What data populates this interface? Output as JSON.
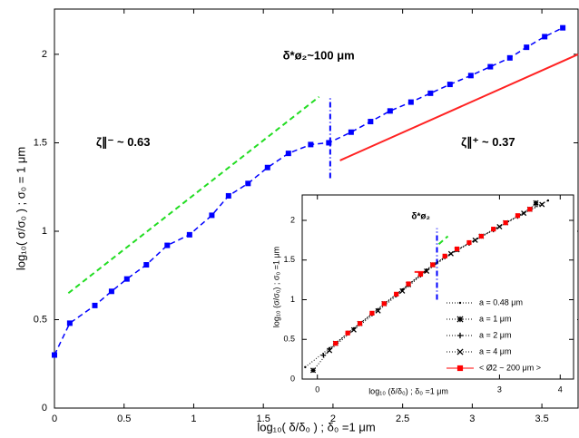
{
  "chart_data": [
    {
      "type": "scatter",
      "xlabel": "log₁₀( δ/δ₀ ) ; δ₀ =1 μm",
      "ylabel": "log₁₀( σ/σ₀ ) ; σ₀ = 1 μm",
      "xlim": [
        0,
        3.76
      ],
      "xticks": [
        0,
        0.5,
        1,
        1.5,
        2,
        2.5,
        3,
        3.5
      ],
      "ylim": [
        0,
        2.256
      ],
      "yticks": [
        0,
        0.5,
        1,
        1.5,
        2
      ],
      "series": [
        {
          "color": "#0000ff",
          "marker": "square",
          "line": "dashed",
          "x": [
            0,
            0.11,
            0.29,
            0.41,
            0.52,
            0.66,
            0.81,
            0.97,
            1.13,
            1.25,
            1.39,
            1.53,
            1.68,
            1.84,
            1.97,
            2.13,
            2.27,
            2.41,
            2.56,
            2.7,
            2.84,
            2.99,
            3.13,
            3.27,
            3.39,
            3.52,
            3.65
          ],
          "values": [
            0.3,
            0.48,
            0.58,
            0.66,
            0.73,
            0.81,
            0.92,
            0.98,
            1.09,
            1.2,
            1.27,
            1.36,
            1.44,
            1.49,
            1.5,
            1.56,
            1.62,
            1.68,
            1.73,
            1.78,
            1.83,
            1.88,
            1.93,
            1.98,
            2.04,
            2.1,
            2.15
          ]
        }
      ],
      "lines": [
        {
          "color": "#22dd22",
          "style": "dashed",
          "x": [
            0.1,
            1.9
          ],
          "values": [
            0.65,
            1.76
          ]
        },
        {
          "color": "#ff2222",
          "style": "solid",
          "x": [
            2.05,
            3.76
          ],
          "values": [
            1.4,
            2.0
          ]
        },
        {
          "color": "#0000ff",
          "style": "dashdot",
          "x": [
            1.98,
            1.98
          ],
          "values": [
            1.3,
            1.76
          ]
        }
      ],
      "annotations": [
        {
          "text": "δ*ø₂~100 μm",
          "x": 1.64,
          "y": 1.99,
          "color": "#0000ff"
        },
        {
          "text": "ζ∥⁻ ~ 0.63",
          "x": 0.3,
          "y": 1.5,
          "color": "#33dd33"
        },
        {
          "text": "ζ∥⁺ ~ 0.37",
          "x": 2.92,
          "y": 1.5,
          "color": "#ff2222"
        }
      ]
    },
    {
      "type": "scatter",
      "xlabel": "log₁₀ (δ/δ₀) ; δ₀ =1 μm",
      "ylabel": "log₁₀ (σ/σ₀) ; σ₀ =1 μm",
      "xlim": [
        -0.25,
        4.22
      ],
      "xticks": [
        0,
        3,
        4
      ],
      "ylim": [
        0,
        2.32
      ],
      "yticks": [
        0,
        0.5,
        1,
        1.5,
        2
      ],
      "legend": "lower right",
      "series": [
        {
          "name": "a = 0.48 μm",
          "color": "#000000",
          "marker": "dot",
          "line": "dotted",
          "x": [
            -0.2,
            0.2,
            0.6,
            1.0,
            1.4,
            1.8,
            2.2,
            2.6,
            3.0,
            3.4,
            3.8
          ],
          "values": [
            0.15,
            0.39,
            0.64,
            0.88,
            1.13,
            1.38,
            1.58,
            1.75,
            1.92,
            2.09,
            2.25
          ]
        },
        {
          "name": "a = 1 μm",
          "color": "#000000",
          "marker": "star",
          "line": "dotted",
          "x": [
            -0.07,
            0.3,
            0.7,
            1.1,
            1.5,
            1.9,
            2.3,
            2.7,
            3.1,
            3.5,
            3.6
          ],
          "values": [
            0.11,
            0.45,
            0.7,
            0.95,
            1.19,
            1.44,
            1.63,
            1.8,
            1.97,
            2.14,
            2.22
          ]
        },
        {
          "name": "a = 2 μm",
          "color": "#000000",
          "marker": "plus",
          "line": "dotted",
          "x": [
            0.1,
            0.5,
            0.9,
            1.3,
            1.7,
            2.1,
            2.5,
            2.9,
            3.3,
            3.6
          ],
          "values": [
            0.3,
            0.58,
            0.82,
            1.06,
            1.31,
            1.54,
            1.71,
            1.88,
            2.05,
            2.2
          ]
        },
        {
          "name": "a = 4 μm",
          "color": "#000000",
          "marker": "cross",
          "line": "dotted",
          "x": [
            0.2,
            0.6,
            1.0,
            1.4,
            1.8,
            2.2,
            2.6,
            3.0,
            3.4,
            3.7
          ],
          "values": [
            0.36,
            0.62,
            0.86,
            1.11,
            1.36,
            1.58,
            1.75,
            1.92,
            2.09,
            2.2
          ]
        },
        {
          "name": "< Ø2 ~ 200 μm >",
          "color": "#ff0000",
          "marker": "square",
          "line": "none",
          "x": [
            0.3,
            0.5,
            0.7,
            0.9,
            1.1,
            1.3,
            1.5,
            1.7,
            1.9,
            2.1,
            2.3,
            2.5,
            2.7,
            2.9,
            3.1,
            3.3,
            3.5
          ],
          "values": [
            0.45,
            0.58,
            0.7,
            0.83,
            0.95,
            1.07,
            1.2,
            1.32,
            1.44,
            1.55,
            1.64,
            1.72,
            1.8,
            1.89,
            1.97,
            2.06,
            2.14
          ]
        }
      ],
      "lines": [
        {
          "color": "#0000ff",
          "style": "dashdot",
          "x": [
            1.97,
            1.97
          ],
          "values": [
            1.0,
            1.9
          ]
        },
        {
          "color": "#22dd22",
          "style": "dashed",
          "x": [
            2.0,
            2.15
          ],
          "values": [
            1.7,
            1.8
          ]
        },
        {
          "color": "#ff2222",
          "style": "solid",
          "x": [
            1.6,
            1.8
          ],
          "values": [
            1.35,
            1.35
          ]
        }
      ],
      "annotations": [
        {
          "text": "δ*ø₂",
          "x": 1.55,
          "y": 2.05,
          "color": "#0000ff"
        }
      ]
    }
  ]
}
